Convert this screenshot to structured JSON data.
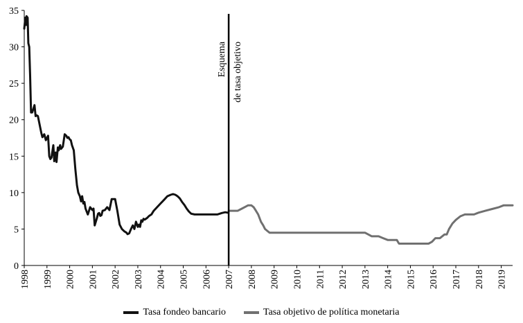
{
  "chart_data": {
    "type": "line",
    "title": "",
    "xlabel": "",
    "ylabel": "",
    "xlim": [
      1998.0,
      2019.5
    ],
    "ylim": [
      0,
      35
    ],
    "yticks": [
      0,
      5,
      10,
      15,
      20,
      25,
      30,
      35
    ],
    "xticks": [
      "1998",
      "1999",
      "2000",
      "2001",
      "2002",
      "2003",
      "2004",
      "2005",
      "2006",
      "2007",
      "2008",
      "2009",
      "2010",
      "2011",
      "2012",
      "2013",
      "2014",
      "2015",
      "2016",
      "2017",
      "2018",
      "2019"
    ],
    "grid": false,
    "legend_position": "bottom",
    "series": [
      {
        "name": "Tasa fondeo bancario",
        "color": "#111111",
        "x": [
          1998.0,
          1998.05,
          1998.08,
          1998.1,
          1998.15,
          1998.18,
          1998.22,
          1998.26,
          1998.3,
          1998.35,
          1998.45,
          1998.5,
          1998.55,
          1998.6,
          1998.75,
          1998.8,
          1998.88,
          1998.95,
          1999.05,
          1999.1,
          1999.15,
          1999.2,
          1999.28,
          1999.32,
          1999.38,
          1999.42,
          1999.48,
          1999.52,
          1999.58,
          1999.62,
          1999.7,
          1999.78,
          1999.85,
          1999.9,
          1999.95,
          2000.0,
          2000.05,
          2000.1,
          2000.18,
          2000.25,
          2000.32,
          2000.38,
          2000.45,
          2000.5,
          2000.55,
          2000.6,
          2000.65,
          2000.7,
          2000.8,
          2000.85,
          2000.9,
          2001.0,
          2001.05,
          2001.1,
          2001.2,
          2001.25,
          2001.3,
          2001.35,
          2001.4,
          2001.45,
          2001.55,
          2001.65,
          2001.75,
          2001.85,
          2002.0,
          2002.1,
          2002.2,
          2002.3,
          2002.4,
          2002.5,
          2002.55,
          2002.62,
          2002.7,
          2002.78,
          2002.85,
          2002.92,
          2003.0,
          2003.05,
          2003.1,
          2003.15,
          2003.2,
          2003.25,
          2003.3,
          2003.4,
          2003.5,
          2003.6,
          2003.7,
          2003.85,
          2004.0,
          2004.15,
          2004.3,
          2004.45,
          2004.55,
          2004.65,
          2004.75,
          2004.85,
          2004.95,
          2005.05,
          2005.15,
          2005.25,
          2005.35,
          2005.5,
          2005.7,
          2005.9,
          2006.1,
          2006.3,
          2006.5,
          2006.7,
          2006.85,
          2006.95
        ],
        "values": [
          32.5,
          34.0,
          33.0,
          34.2,
          34.0,
          30.5,
          30.0,
          26.0,
          21.0,
          21.0,
          22.0,
          20.5,
          20.6,
          20.5,
          18.2,
          17.6,
          18.0,
          17.2,
          17.8,
          15.0,
          14.6,
          14.8,
          16.5,
          14.3,
          15.5,
          14.2,
          16.2,
          15.8,
          16.5,
          16.0,
          16.3,
          18.0,
          17.8,
          17.5,
          17.6,
          17.3,
          17.2,
          16.5,
          15.8,
          13.2,
          11.0,
          10.0,
          9.5,
          8.8,
          9.5,
          8.5,
          8.7,
          7.8,
          7.0,
          7.5,
          8.0,
          7.6,
          7.8,
          5.5,
          6.5,
          7.1,
          7.2,
          6.8,
          6.9,
          7.5,
          7.6,
          8.0,
          7.6,
          9.1,
          9.1,
          7.5,
          5.6,
          5.0,
          4.7,
          4.5,
          4.3,
          4.4,
          5.0,
          5.5,
          5.0,
          6.0,
          5.3,
          5.6,
          5.3,
          6.2,
          6.0,
          6.4,
          6.3,
          6.5,
          6.8,
          7.0,
          7.5,
          8.0,
          8.5,
          9.0,
          9.5,
          9.7,
          9.8,
          9.7,
          9.5,
          9.2,
          8.7,
          8.3,
          7.8,
          7.4,
          7.1,
          7.0,
          7.0,
          7.0,
          7.0,
          7.0,
          7.0,
          7.2,
          7.3,
          7.25
        ]
      },
      {
        "name": "Tasa objetivo de política monetaria",
        "color": "#707070",
        "x": [
          2007.0,
          2007.4,
          2007.55,
          2007.7,
          2007.85,
          2008.0,
          2008.1,
          2008.2,
          2008.3,
          2008.42,
          2008.52,
          2008.6,
          2008.7,
          2008.8,
          2008.9,
          2009.0,
          2009.5,
          2010.0,
          2011.0,
          2012.0,
          2012.5,
          2013.0,
          2013.3,
          2013.6,
          2013.8,
          2014.0,
          2014.4,
          2014.5,
          2014.7,
          2015.0,
          2015.5,
          2015.8,
          2015.95,
          2016.1,
          2016.3,
          2016.5,
          2016.6,
          2016.7,
          2016.85,
          2017.0,
          2017.2,
          2017.4,
          2017.6,
          2017.8,
          2018.0,
          2018.3,
          2018.6,
          2018.9,
          2019.1,
          2019.5
        ],
        "values": [
          7.5,
          7.5,
          7.75,
          8.0,
          8.25,
          8.25,
          8.0,
          7.5,
          7.0,
          6.0,
          5.5,
          5.0,
          4.75,
          4.5,
          4.5,
          4.5,
          4.5,
          4.5,
          4.5,
          4.5,
          4.5,
          4.5,
          4.0,
          4.0,
          3.75,
          3.5,
          3.5,
          3.0,
          3.0,
          3.0,
          3.0,
          3.0,
          3.25,
          3.75,
          3.75,
          4.25,
          4.25,
          5.0,
          5.75,
          6.25,
          6.75,
          7.0,
          7.0,
          7.0,
          7.25,
          7.5,
          7.75,
          8.0,
          8.25,
          8.25
        ]
      }
    ],
    "annotations": [
      {
        "type": "vertical-line",
        "x": 2007.0,
        "text_lines": [
          "Esquema",
          "de tasa objetivo"
        ]
      }
    ]
  }
}
